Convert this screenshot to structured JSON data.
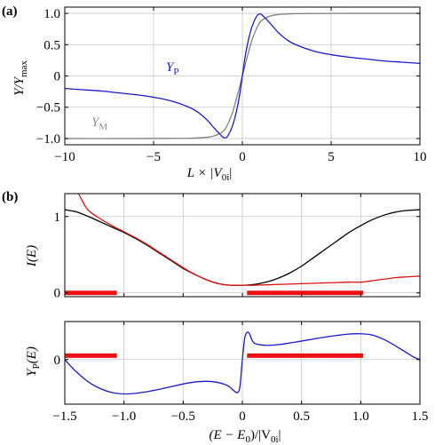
{
  "chart_data": [
    {
      "panel_label": "(a)",
      "type": "line",
      "xlabel": "L × |V",
      "xlabel_sub": "0i",
      "xlabel_tail": "|",
      "ylabel": "Y/Y",
      "ylabel_sub": "max",
      "xlim": [
        -10,
        10
      ],
      "ylim": [
        -1.1,
        1.1
      ],
      "xticks": [
        -10,
        -5,
        0,
        5,
        10
      ],
      "yticks": [
        -1.0,
        -0.5,
        0,
        0.5,
        1.0
      ],
      "xtick_labels": [
        "−10",
        "−5",
        "0",
        "5",
        "10"
      ],
      "ytick_labels": [
        "−1.0",
        "−0.5",
        "0",
        "0.5",
        "1.0"
      ],
      "grid": true,
      "series": [
        {
          "name": "Y",
          "name_sub": "P",
          "color": "#1a1acc",
          "x": [
            -10,
            -9,
            -8,
            -7,
            -6,
            -5,
            -4,
            -3,
            -2.5,
            -2,
            -1.6,
            -1.2,
            -1.0,
            -0.8,
            -0.5,
            -0.2,
            0,
            0.2,
            0.5,
            0.8,
            1.0,
            1.2,
            1.6,
            2,
            2.5,
            3,
            4,
            5,
            6,
            7,
            8,
            9,
            10
          ],
          "y": [
            -0.2,
            -0.22,
            -0.24,
            -0.27,
            -0.3,
            -0.34,
            -0.4,
            -0.5,
            -0.58,
            -0.7,
            -0.83,
            -0.95,
            -0.99,
            -0.95,
            -0.75,
            -0.38,
            0,
            0.38,
            0.75,
            0.95,
            0.99,
            0.95,
            0.83,
            0.7,
            0.58,
            0.5,
            0.4,
            0.34,
            0.3,
            0.27,
            0.24,
            0.22,
            0.2
          ]
        },
        {
          "name": "Y",
          "name_sub": "M",
          "color": "#808080",
          "x": [
            -10,
            -6,
            -4,
            -3,
            -2,
            -1.5,
            -1.0,
            -0.6,
            -0.3,
            0,
            0.3,
            0.6,
            1.0,
            1.5,
            2,
            3,
            4,
            6,
            10
          ],
          "y": [
            -1.0,
            -1.0,
            -0.998,
            -0.995,
            -0.98,
            -0.95,
            -0.86,
            -0.62,
            -0.33,
            0,
            0.33,
            0.62,
            0.86,
            0.95,
            0.98,
            0.995,
            0.998,
            1.0,
            1.0
          ]
        }
      ]
    },
    {
      "panel_label": "(b)",
      "type": "line",
      "ylabel": "I(E)",
      "xlim": [
        -1.5,
        1.5
      ],
      "ylim": [
        -0.05,
        1.3
      ],
      "xticks": [
        -1.5,
        -1.0,
        -0.5,
        0,
        0.5,
        1.0,
        1.5
      ],
      "yticks": [
        0,
        1
      ],
      "ytick_labels": [
        "0",
        "1"
      ],
      "grid": true,
      "series": [
        {
          "color": "#000000",
          "x": [
            -1.5,
            -1.4,
            -1.3,
            -1.2,
            -1.1,
            -1.0,
            -0.9,
            -0.8,
            -0.7,
            -0.6,
            -0.5,
            -0.4,
            -0.3,
            -0.2,
            -0.1,
            0,
            0.1,
            0.2,
            0.3,
            0.4,
            0.5,
            0.6,
            0.7,
            0.8,
            0.9,
            1.0,
            1.1,
            1.2,
            1.3,
            1.4,
            1.5
          ],
          "y": [
            1.09,
            1.06,
            1.0,
            0.93,
            0.86,
            0.79,
            0.71,
            0.62,
            0.52,
            0.42,
            0.32,
            0.24,
            0.17,
            0.12,
            0.1,
            0.1,
            0.11,
            0.14,
            0.19,
            0.26,
            0.35,
            0.46,
            0.57,
            0.68,
            0.79,
            0.88,
            0.96,
            1.02,
            1.06,
            1.08,
            1.09
          ]
        },
        {
          "color": "#dd1111",
          "x": [
            -1.4,
            -1.35,
            -1.3,
            -1.2,
            -1.1,
            -1.0,
            -0.9,
            -0.8,
            -0.7,
            -0.6,
            -0.5,
            -0.4,
            -0.3,
            -0.2,
            -0.1,
            0,
            0.1,
            0.3,
            0.5,
            0.7,
            0.9,
            1.0,
            1.1,
            1.2,
            1.3,
            1.4,
            1.5
          ],
          "y": [
            1.35,
            1.2,
            1.08,
            0.97,
            0.88,
            0.8,
            0.72,
            0.63,
            0.53,
            0.43,
            0.33,
            0.24,
            0.17,
            0.12,
            0.1,
            0.1,
            0.1,
            0.11,
            0.12,
            0.13,
            0.14,
            0.14,
            0.16,
            0.18,
            0.2,
            0.21,
            0.22
          ]
        }
      ],
      "bands": [
        {
          "x": [
            -1.5,
            -1.06
          ],
          "y": 0,
          "color": "#ee1111"
        },
        {
          "x": [
            0.04,
            1.02
          ],
          "y": 0,
          "color": "#ee1111"
        }
      ]
    },
    {
      "type": "line",
      "xlabel": "(E − E",
      "xlabel_sub": "0",
      "xlabel_tail": ")/|V",
      "xlabel_sub2": "0i",
      "xlabel_tail2": "|",
      "ylabel": "Y",
      "ylabel_sub": "P",
      "ylabel_tail": "(E)",
      "xlim": [
        -1.5,
        1.5
      ],
      "ylim": [
        -1.35,
        1.15
      ],
      "xticks": [
        -1.5,
        -1.0,
        -0.5,
        0,
        0.5,
        1.0,
        1.5
      ],
      "xtick_labels": [
        "−1.5",
        "−1.0",
        "−0.5",
        "0",
        "0.5",
        "1.0",
        "1.5"
      ],
      "yticks": [
        0
      ],
      "ytick_labels": [
        "0"
      ],
      "grid": true,
      "series": [
        {
          "color": "#1a1acc",
          "x": [
            -1.5,
            -1.45,
            -1.4,
            -1.3,
            -1.2,
            -1.1,
            -1.0,
            -0.9,
            -0.8,
            -0.7,
            -0.6,
            -0.5,
            -0.4,
            -0.3,
            -0.2,
            -0.12,
            -0.07,
            -0.04,
            -0.02,
            0,
            0.02,
            0.04,
            0.06,
            0.1,
            0.2,
            0.3,
            0.4,
            0.5,
            0.6,
            0.7,
            0.8,
            0.9,
            1.0,
            1.1,
            1.2,
            1.3,
            1.4,
            1.45,
            1.5
          ],
          "y": [
            0.0,
            -0.2,
            -0.38,
            -0.68,
            -0.88,
            -1.0,
            -1.04,
            -1.02,
            -0.97,
            -0.9,
            -0.82,
            -0.74,
            -0.68,
            -0.66,
            -0.7,
            -0.8,
            -0.95,
            -1.0,
            -0.8,
            0.0,
            0.65,
            0.82,
            0.78,
            0.5,
            0.43,
            0.45,
            0.5,
            0.56,
            0.62,
            0.68,
            0.73,
            0.77,
            0.78,
            0.74,
            0.6,
            0.4,
            0.18,
            0.07,
            0.0
          ]
        }
      ],
      "bands": [
        {
          "x": [
            -1.5,
            -1.06
          ],
          "y": 0.12,
          "color": "#ee1111"
        },
        {
          "x": [
            0.04,
            1.02
          ],
          "y": 0.12,
          "color": "#ee1111"
        }
      ]
    }
  ]
}
